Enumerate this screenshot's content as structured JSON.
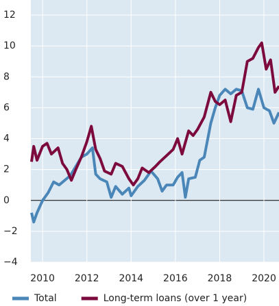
{
  "chart_data": {
    "type": "line",
    "xlim": [
      2009.47,
      2020.68
    ],
    "xticks": [
      2010,
      2012,
      2014,
      2016,
      2018,
      2020
    ],
    "ylim": [
      -4,
      12
    ],
    "yticks": [
      {
        "value": -4,
        "label": "−4"
      },
      {
        "value": -2,
        "label": "−2"
      },
      0,
      2,
      4,
      6,
      8,
      10,
      12
    ],
    "grid": true,
    "legend": "bottom",
    "series": [
      {
        "name": "Total",
        "color": "#4a86b8",
        "x": [
          2009.5,
          2009.6,
          2009.75,
          2010,
          2010.25,
          2010.5,
          2010.75,
          2011,
          2011.25,
          2011.5,
          2011.75,
          2012,
          2012.25,
          2012.4,
          2012.6,
          2012.9,
          2013.1,
          2013.3,
          2013.6,
          2013.9,
          2014,
          2014.3,
          2014.6,
          2014.9,
          2015.2,
          2015.4,
          2015.6,
          2015.9,
          2016.1,
          2016.3,
          2016.45,
          2016.6,
          2016.9,
          2017.1,
          2017.3,
          2017.6,
          2017.8,
          2018,
          2018.25,
          2018.5,
          2018.75,
          2019,
          2019.25,
          2019.5,
          2019.75,
          2020,
          2020.25,
          2020.45,
          2020.68
        ],
        "values": [
          -0.8,
          -1.4,
          -0.8,
          0,
          0.5,
          1.2,
          1.0,
          1.3,
          1.6,
          2.2,
          2.8,
          3.0,
          3.4,
          1.7,
          1.4,
          1.2,
          0.2,
          0.9,
          0.4,
          0.8,
          0.3,
          0.9,
          1.3,
          1.9,
          1.4,
          0.6,
          1.0,
          1.0,
          1.5,
          1.8,
          0.2,
          1.4,
          1.5,
          2.6,
          2.8,
          5.0,
          6.0,
          6.8,
          7.2,
          6.9,
          7.2,
          7.1,
          6.0,
          5.9,
          7.2,
          6.0,
          5.8,
          5.0,
          5.7
        ]
      },
      {
        "name": "Long-term loans (over 1 year)",
        "color": "#7d0a3c",
        "x": [
          2009.5,
          2009.6,
          2009.75,
          2010,
          2010.2,
          2010.4,
          2010.7,
          2010.9,
          2011.1,
          2011.3,
          2011.5,
          2011.75,
          2012,
          2012.2,
          2012.4,
          2012.6,
          2012.8,
          2013.1,
          2013.3,
          2013.6,
          2013.9,
          2014.1,
          2014.3,
          2014.5,
          2014.8,
          2015.1,
          2015.3,
          2015.6,
          2015.9,
          2016.1,
          2016.3,
          2016.6,
          2016.8,
          2017,
          2017.3,
          2017.6,
          2017.8,
          2018,
          2018.25,
          2018.5,
          2018.75,
          2019,
          2019.25,
          2019.5,
          2019.75,
          2019.9,
          2020.1,
          2020.3,
          2020.5,
          2020.68
        ],
        "values": [
          2.5,
          3.5,
          2.6,
          3.5,
          3.7,
          3.0,
          3.4,
          2.4,
          2.0,
          1.3,
          2.0,
          2.8,
          3.8,
          4.8,
          3.3,
          2.7,
          1.9,
          1.7,
          2.4,
          2.2,
          1.4,
          1.0,
          1.4,
          2.1,
          1.8,
          2.2,
          2.5,
          2.9,
          3.3,
          4.0,
          3.0,
          4.5,
          4.2,
          4.6,
          5.4,
          7.0,
          6.4,
          6.2,
          6.5,
          5.1,
          6.8,
          7.0,
          9.0,
          9.2,
          9.9,
          10.2,
          8.5,
          9.1,
          7.0,
          7.4
        ]
      }
    ]
  }
}
